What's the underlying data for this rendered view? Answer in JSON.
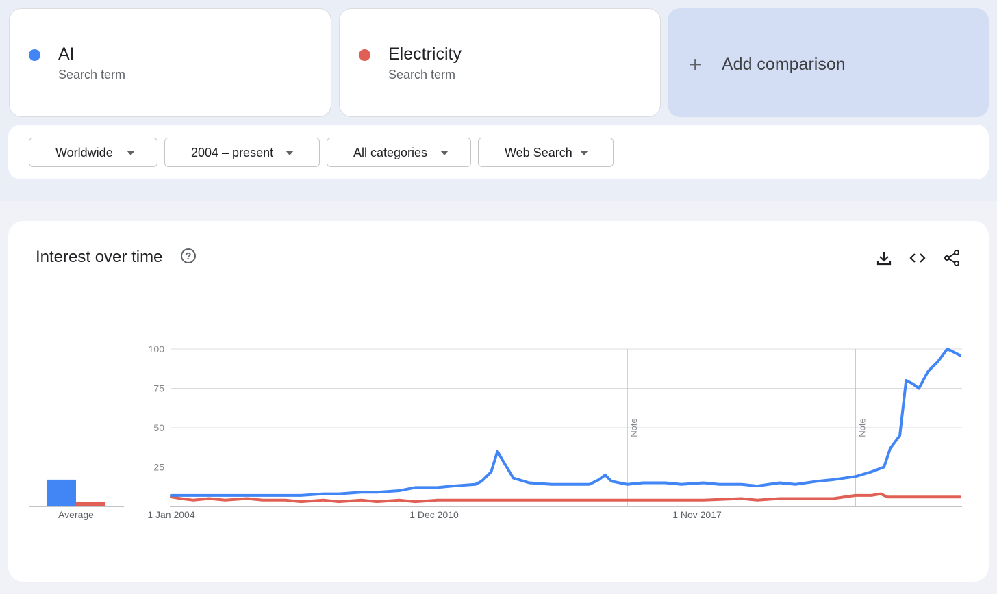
{
  "terms": [
    {
      "name": "AI",
      "sublabel": "Search term",
      "color": "#4285f4"
    },
    {
      "name": "Electricity",
      "sublabel": "Search term",
      "color": "#e06055"
    }
  ],
  "add_comparison": {
    "label": "Add comparison",
    "icon": "plus-icon"
  },
  "filters": [
    {
      "label": "Worldwide",
      "icon": "caret-down-icon"
    },
    {
      "label": "2004 – present",
      "icon": "caret-down-icon"
    },
    {
      "label": "All categories",
      "icon": "caret-down-icon"
    },
    {
      "label": "Web Search",
      "icon": "caret-down-icon"
    }
  ],
  "panel": {
    "title": "Interest over time",
    "help_icon": "help-icon",
    "help_glyph": "?",
    "tools": [
      "download-icon",
      "embed-code-icon",
      "share-icon"
    ]
  },
  "chart_data": {
    "type": "line",
    "ylim": [
      0,
      100
    ],
    "yticks": [
      25,
      50,
      75,
      100
    ],
    "grid": true,
    "x_tick_labels": [
      "1 Jan 2004",
      "1 Dec 2010",
      "1 Nov 2017"
    ],
    "x_tick_dates": [
      "2004-01",
      "2010-12",
      "2017-11"
    ],
    "notes": [
      {
        "date": "2016-01",
        "label": "Note"
      },
      {
        "date": "2022-01",
        "label": "Note"
      }
    ],
    "average": {
      "label": "Average",
      "values": [
        17,
        3
      ]
    },
    "series": [
      {
        "name": "AI",
        "color": "#4285f4",
        "points": [
          [
            "2004-01",
            7
          ],
          [
            "2005-01",
            7
          ],
          [
            "2006-01",
            7
          ],
          [
            "2006-12",
            7
          ],
          [
            "2007-06",
            7
          ],
          [
            "2008-01",
            8
          ],
          [
            "2008-06",
            8
          ],
          [
            "2009-01",
            9
          ],
          [
            "2009-06",
            9
          ],
          [
            "2010-01",
            10
          ],
          [
            "2010-06",
            12
          ],
          [
            "2011-01",
            12
          ],
          [
            "2011-06",
            13
          ],
          [
            "2012-01",
            14
          ],
          [
            "2012-03",
            16
          ],
          [
            "2012-06",
            22
          ],
          [
            "2012-08",
            35
          ],
          [
            "2012-10",
            28
          ],
          [
            "2013-01",
            18
          ],
          [
            "2013-06",
            15
          ],
          [
            "2014-01",
            14
          ],
          [
            "2014-06",
            14
          ],
          [
            "2015-01",
            14
          ],
          [
            "2015-04",
            17
          ],
          [
            "2015-06",
            20
          ],
          [
            "2015-08",
            16
          ],
          [
            "2016-01",
            14
          ],
          [
            "2016-06",
            15
          ],
          [
            "2017-01",
            15
          ],
          [
            "2017-06",
            14
          ],
          [
            "2018-01",
            15
          ],
          [
            "2018-06",
            14
          ],
          [
            "2019-01",
            14
          ],
          [
            "2019-06",
            13
          ],
          [
            "2020-01",
            15
          ],
          [
            "2020-06",
            14
          ],
          [
            "2021-01",
            16
          ],
          [
            "2021-06",
            17
          ],
          [
            "2022-01",
            19
          ],
          [
            "2022-06",
            22
          ],
          [
            "2022-10",
            25
          ],
          [
            "2022-12",
            37
          ],
          [
            "2023-03",
            45
          ],
          [
            "2023-05",
            80
          ],
          [
            "2023-07",
            78
          ],
          [
            "2023-09",
            75
          ],
          [
            "2023-12",
            86
          ],
          [
            "2024-03",
            92
          ],
          [
            "2024-06",
            100
          ],
          [
            "2024-08",
            98
          ],
          [
            "2024-10",
            96
          ]
        ]
      },
      {
        "name": "Electricity",
        "color": "#e06055",
        "points": [
          [
            "2004-01",
            6
          ],
          [
            "2004-04",
            5
          ],
          [
            "2004-08",
            4
          ],
          [
            "2005-01",
            5
          ],
          [
            "2005-06",
            4
          ],
          [
            "2006-01",
            5
          ],
          [
            "2006-06",
            4
          ],
          [
            "2007-01",
            4
          ],
          [
            "2007-06",
            3
          ],
          [
            "2008-01",
            4
          ],
          [
            "2008-06",
            3
          ],
          [
            "2009-01",
            4
          ],
          [
            "2009-06",
            3
          ],
          [
            "2010-01",
            4
          ],
          [
            "2010-06",
            3
          ],
          [
            "2011-01",
            4
          ],
          [
            "2012-01",
            4
          ],
          [
            "2013-01",
            4
          ],
          [
            "2014-01",
            4
          ],
          [
            "2015-01",
            4
          ],
          [
            "2016-01",
            4
          ],
          [
            "2017-01",
            4
          ],
          [
            "2018-01",
            4
          ],
          [
            "2019-01",
            5
          ],
          [
            "2019-06",
            4
          ],
          [
            "2020-01",
            5
          ],
          [
            "2020-06",
            5
          ],
          [
            "2021-01",
            5
          ],
          [
            "2021-06",
            5
          ],
          [
            "2022-01",
            7
          ],
          [
            "2022-06",
            7
          ],
          [
            "2022-09",
            8
          ],
          [
            "2022-11",
            6
          ],
          [
            "2023-06",
            6
          ],
          [
            "2024-01",
            6
          ],
          [
            "2024-10",
            6
          ]
        ]
      }
    ]
  }
}
